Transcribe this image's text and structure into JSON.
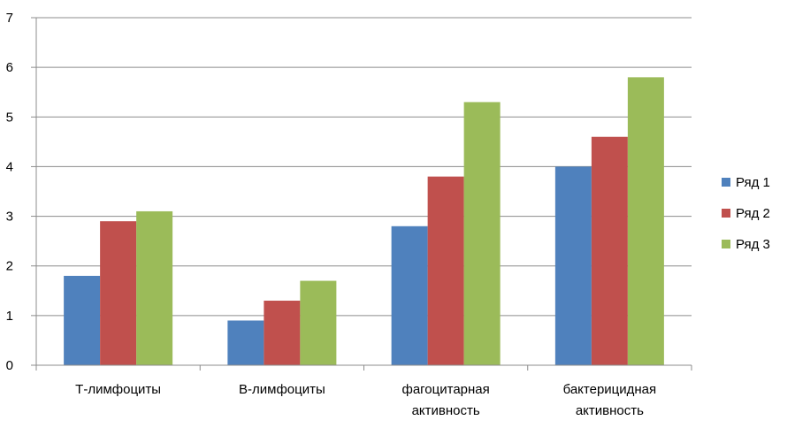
{
  "chart_data": {
    "type": "bar",
    "title": "",
    "xlabel": "",
    "ylabel": "",
    "categories": [
      [
        "Т-лимфоциты"
      ],
      [
        "В-лимфоциты"
      ],
      [
        "фагоцитарная",
        "активность"
      ],
      [
        "бактерицидная",
        "активность"
      ]
    ],
    "series": [
      {
        "name": "Ряд 1",
        "color": "#4F81BD",
        "values": [
          1.8,
          0.9,
          2.8,
          4.0
        ]
      },
      {
        "name": "Ряд 2",
        "color": "#C0504D",
        "values": [
          2.9,
          1.3,
          3.8,
          4.6
        ]
      },
      {
        "name": "Ряд 3",
        "color": "#9BBB59",
        "values": [
          3.1,
          1.7,
          5.3,
          5.8
        ]
      }
    ],
    "ylim": [
      0,
      7
    ],
    "yticks": [
      "0",
      "1",
      "2",
      "3",
      "4",
      "5",
      "6",
      "7"
    ],
    "grid": true,
    "legend_position": "right"
  }
}
